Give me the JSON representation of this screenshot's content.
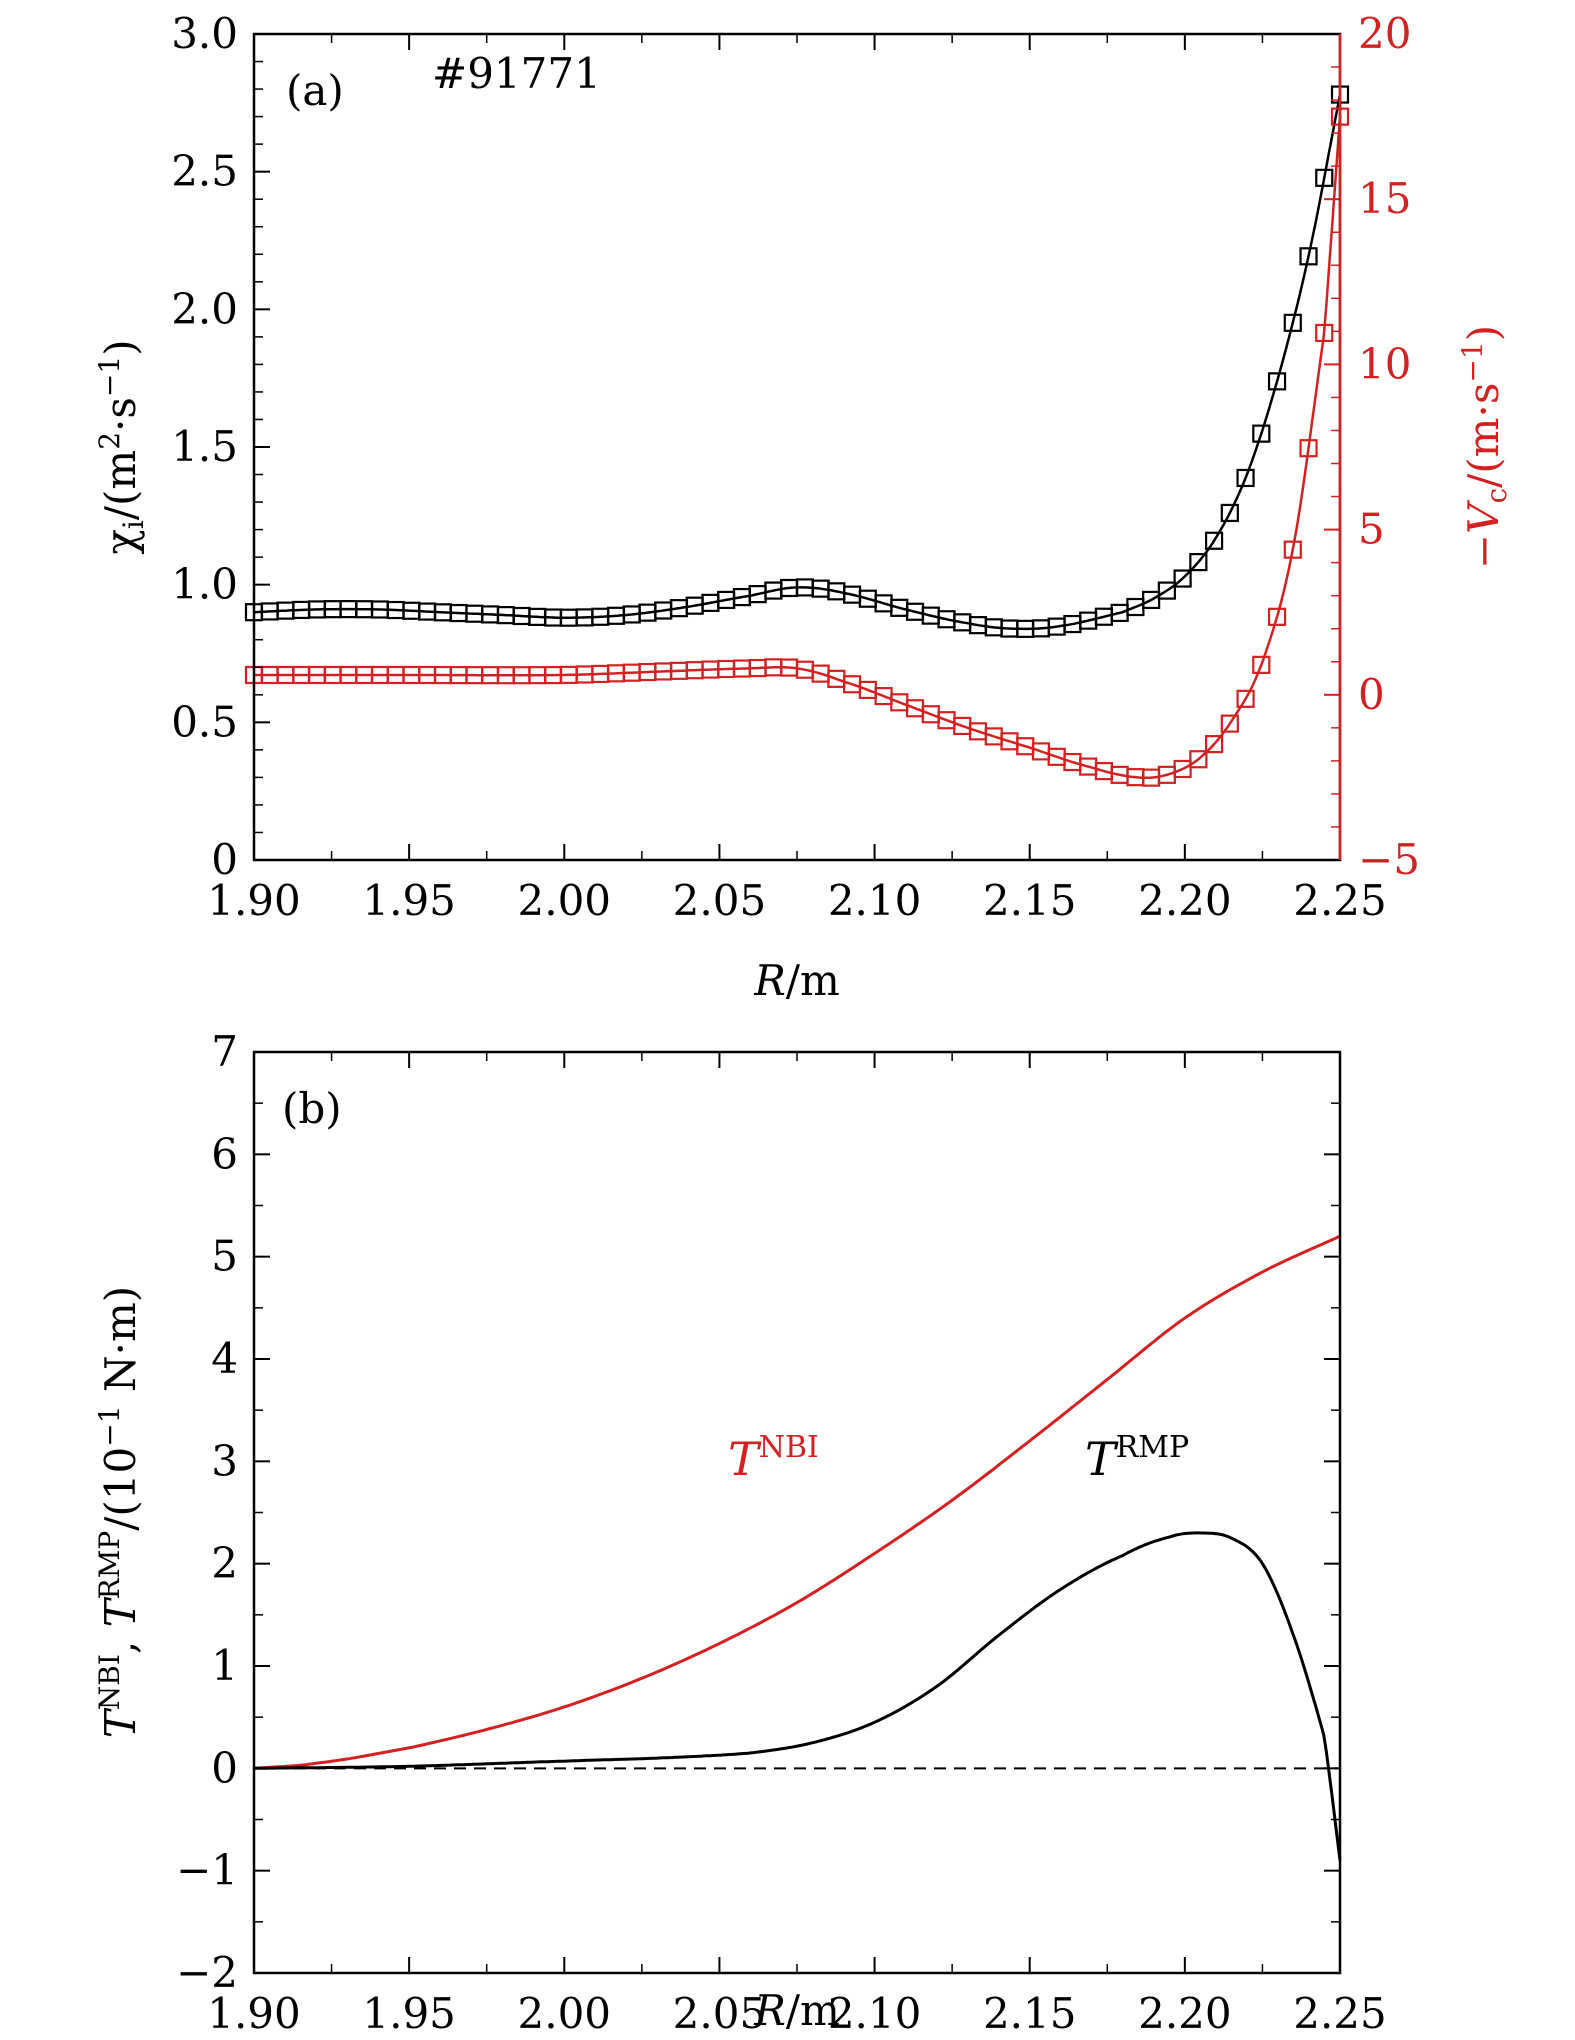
{
  "chart_data": [
    {
      "panel": "(a)",
      "type": "line",
      "annotation": "#91771",
      "xlabel": "R/m",
      "xlim": [
        1.9,
        2.25
      ],
      "xticks": [
        "1.90",
        "1.95",
        "2.00",
        "2.05",
        "2.10",
        "2.15",
        "2.20",
        "2.25"
      ],
      "ylabel_left": "χi/(m2·s−1)",
      "ylim_left": [
        0,
        3.0
      ],
      "yticks_left": [
        "0",
        "0.5",
        "1.0",
        "1.5",
        "2.0",
        "2.5",
        "3.0"
      ],
      "ylabel_right": "−Vc/(m·s−1)",
      "ylim_right": [
        -5,
        20
      ],
      "yticks_right": [
        "−5",
        "0",
        "5",
        "10",
        "15",
        "20"
      ],
      "series": [
        {
          "name": "chi_i",
          "axis": "left",
          "color": "#000000",
          "marker": "square",
          "x": [
            1.9,
            1.92,
            1.94,
            1.96,
            1.98,
            2.0,
            2.02,
            2.04,
            2.06,
            2.075,
            2.09,
            2.11,
            2.13,
            2.145,
            2.16,
            2.18,
            2.19,
            2.2,
            2.21,
            2.22,
            2.23,
            2.24,
            2.25
          ],
          "y": [
            0.9,
            0.91,
            0.91,
            0.9,
            0.89,
            0.88,
            0.89,
            0.92,
            0.96,
            0.99,
            0.97,
            0.91,
            0.86,
            0.84,
            0.85,
            0.9,
            0.95,
            1.03,
            1.17,
            1.4,
            1.75,
            2.2,
            2.78
          ]
        },
        {
          "name": "-Vc",
          "axis": "right",
          "color": "#d42020",
          "marker": "square",
          "x": [
            1.9,
            1.95,
            2.0,
            2.03,
            2.06,
            2.075,
            2.09,
            2.11,
            2.13,
            2.15,
            2.17,
            2.185,
            2.195,
            2.205,
            2.215,
            2.225,
            2.235,
            2.245,
            2.25
          ],
          "y": [
            0.6,
            0.6,
            0.6,
            0.7,
            0.8,
            0.8,
            0.4,
            -0.3,
            -1.0,
            -1.6,
            -2.2,
            -2.5,
            -2.4,
            -1.9,
            -0.8,
            1.0,
            4.5,
            11.0,
            17.5
          ]
        }
      ]
    },
    {
      "panel": "(b)",
      "type": "line",
      "xlabel": "R/m",
      "xlim": [
        1.9,
        2.25
      ],
      "xticks": [
        "1.90",
        "1.95",
        "2.00",
        "2.05",
        "2.10",
        "2.15",
        "2.20",
        "2.25"
      ],
      "ylabel": "TNBI, TRMP/(10−1 N·m)",
      "ylim": [
        -2,
        7
      ],
      "yticks": [
        "−2",
        "−1",
        "0",
        "1",
        "2",
        "3",
        "4",
        "5",
        "6",
        "7"
      ],
      "zero_line": "dashed",
      "series": [
        {
          "name": "T^NBI",
          "label_base": "T",
          "label_sup": "NBI",
          "color": "#d42020",
          "x": [
            1.9,
            1.92,
            1.95,
            1.975,
            2.0,
            2.025,
            2.05,
            2.075,
            2.1,
            2.125,
            2.15,
            2.175,
            2.2,
            2.225,
            2.25
          ],
          "y": [
            0.0,
            0.05,
            0.2,
            0.38,
            0.6,
            0.88,
            1.22,
            1.62,
            2.1,
            2.62,
            3.2,
            3.8,
            4.4,
            4.85,
            5.2
          ]
        },
        {
          "name": "T^RMP",
          "label_base": "T",
          "label_sup": "RMP",
          "color": "#000000",
          "x": [
            1.9,
            1.95,
            2.0,
            2.03,
            2.06,
            2.08,
            2.1,
            2.12,
            2.14,
            2.16,
            2.18,
            2.195,
            2.205,
            2.215,
            2.225,
            2.235,
            2.245,
            2.25
          ],
          "y": [
            0.0,
            0.02,
            0.07,
            0.1,
            0.15,
            0.25,
            0.45,
            0.8,
            1.3,
            1.75,
            2.08,
            2.26,
            2.3,
            2.25,
            2.0,
            1.3,
            0.3,
            -0.9
          ]
        }
      ]
    }
  ]
}
